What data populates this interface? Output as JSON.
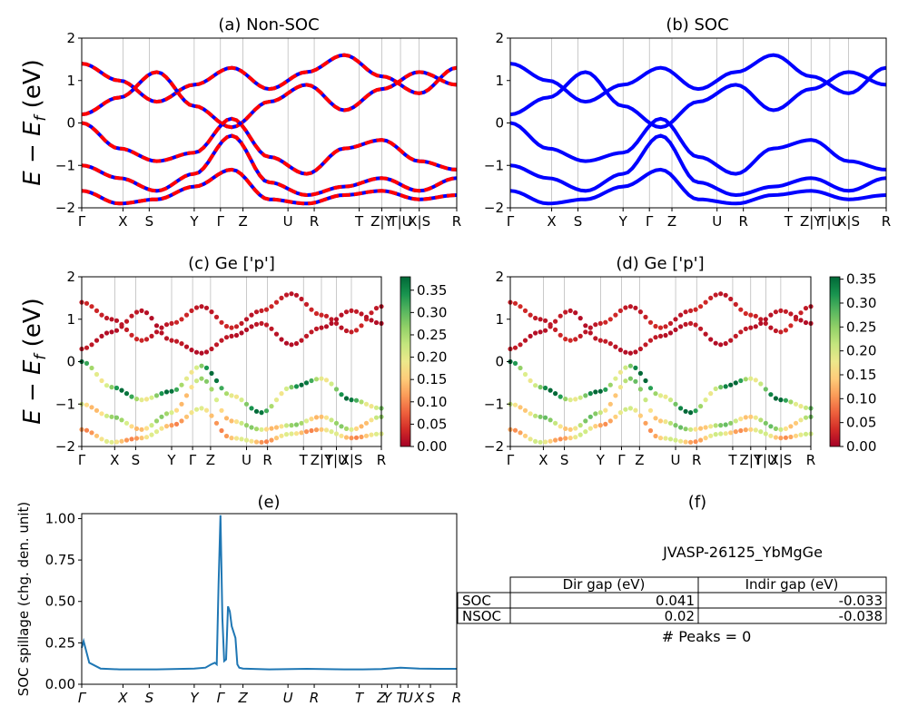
{
  "figure": {
    "ylabel_main": "E − E",
    "ylabel_sub": "f",
    "ylabel_unit": " (eV)"
  },
  "kpoints": {
    "labels": [
      "Γ",
      "X",
      "S",
      "Y",
      "Γ",
      "Z",
      "U",
      "R",
      "T",
      "Z|Y",
      "T|U",
      "X|S",
      "R"
    ],
    "positions": [
      0.0,
      0.11,
      0.18,
      0.3,
      0.37,
      0.43,
      0.55,
      0.62,
      0.74,
      0.8,
      0.85,
      0.9,
      1.0
    ]
  },
  "panels": {
    "a": {
      "title": "(a) Non-SOC",
      "yticks": [
        "2",
        "1",
        "0",
        "−1",
        "−2"
      ]
    },
    "b": {
      "title": "(b) SOC",
      "yticks": [
        "2",
        "1",
        "0",
        "−1",
        "−2"
      ]
    },
    "c": {
      "title": "(c)  Ge ['p']",
      "yticks": [
        "2",
        "1",
        "0",
        "−1",
        "−2"
      ],
      "colorbar": {
        "ticks": [
          "0.35",
          "0.30",
          "0.25",
          "0.20",
          "0.15",
          "0.10",
          "0.05",
          "0.00"
        ],
        "max": 0.38
      }
    },
    "d": {
      "title": "(d) Ge ['p']",
      "yticks": [
        "2",
        "1",
        "0",
        "−1",
        "−2"
      ],
      "colorbar": {
        "ticks": [
          "0.35",
          "0.30",
          "0.25",
          "0.20",
          "0.15",
          "0.10",
          "0.05",
          "0.00"
        ],
        "max": 0.355
      }
    },
    "e": {
      "title": "(e)",
      "ylabel": "SOC spillage (chg. den. unit)",
      "yticks": [
        "1.00",
        "0.75",
        "0.50",
        "0.25",
        "0.00"
      ],
      "xlabels": [
        "Γ",
        "X",
        "S",
        "Y",
        "Γ",
        "Z",
        "U",
        "R",
        "T",
        "Z",
        "Y",
        "T",
        "U",
        "X",
        "S",
        "R"
      ]
    },
    "f": {
      "title": "(f)"
    }
  },
  "chart_data": [
    {
      "type": "line",
      "panel": "a",
      "title": "(a) Non-SOC",
      "ylim": [
        -2,
        2
      ],
      "series": [
        {
          "values": [
            1.4,
            1.0,
            0.5,
            0.9,
            1.3,
            0.8,
            1.2,
            1.6,
            1.1,
            0.7,
            1.3
          ]
        },
        {
          "values": [
            0.2,
            0.6,
            1.2,
            0.4,
            -0.1,
            0.5,
            0.9,
            0.3,
            0.8,
            1.2,
            0.9
          ]
        },
        {
          "values": [
            0.0,
            -0.6,
            -0.9,
            -0.7,
            0.1,
            -0.8,
            -1.2,
            -0.6,
            -0.4,
            -0.9,
            -1.1
          ]
        },
        {
          "values": [
            -1.0,
            -1.3,
            -1.6,
            -1.2,
            -0.3,
            -1.4,
            -1.7,
            -1.5,
            -1.3,
            -1.6,
            -1.3
          ]
        },
        {
          "values": [
            -1.6,
            -1.9,
            -1.8,
            -1.5,
            -1.1,
            -1.8,
            -1.9,
            -1.7,
            -1.6,
            -1.8,
            -1.7
          ]
        }
      ]
    },
    {
      "type": "line",
      "panel": "b",
      "title": "(b) SOC",
      "ylim": [
        -2,
        2
      ],
      "series": [
        {
          "values": [
            1.4,
            1.0,
            0.5,
            0.9,
            1.3,
            0.8,
            1.2,
            1.6,
            1.1,
            0.7,
            1.3
          ]
        },
        {
          "values": [
            0.2,
            0.6,
            1.2,
            0.4,
            -0.1,
            0.5,
            0.9,
            0.3,
            0.8,
            1.2,
            0.9
          ]
        },
        {
          "values": [
            0.0,
            -0.6,
            -0.9,
            -0.7,
            0.1,
            -0.8,
            -1.2,
            -0.6,
            -0.4,
            -0.9,
            -1.1
          ]
        },
        {
          "values": [
            -1.0,
            -1.3,
            -1.6,
            -1.2,
            -0.3,
            -1.4,
            -1.7,
            -1.5,
            -1.3,
            -1.6,
            -1.3
          ]
        },
        {
          "values": [
            -1.6,
            -1.9,
            -1.8,
            -1.5,
            -1.1,
            -1.8,
            -1.9,
            -1.7,
            -1.6,
            -1.8,
            -1.7
          ]
        }
      ]
    },
    {
      "type": "scatter",
      "panel": "c",
      "title": "(c)  Ge ['p']",
      "ylim": [
        -2,
        2
      ],
      "colorbar": "RdYlGn",
      "series": [
        {
          "values": [
            1.4,
            1.0,
            0.5,
            0.9,
            1.3,
            0.8,
            1.2,
            1.6,
            1.1,
            0.7,
            1.3
          ],
          "weight": 0.03
        },
        {
          "values": [
            0.3,
            0.7,
            1.2,
            0.5,
            0.2,
            0.6,
            0.9,
            0.4,
            0.8,
            1.2,
            0.9
          ],
          "weight": 0.02
        },
        {
          "values": [
            0.0,
            -0.6,
            -0.9,
            -0.7,
            -0.1,
            -0.8,
            -1.2,
            -0.6,
            -0.4,
            -0.9,
            -1.1
          ],
          "weight": 0.33
        },
        {
          "values": [
            -1.0,
            -1.3,
            -1.6,
            -1.2,
            -0.4,
            -1.4,
            -1.6,
            -1.5,
            -1.3,
            -1.6,
            -1.3
          ],
          "weight": 0.24
        },
        {
          "values": [
            -1.6,
            -1.9,
            -1.8,
            -1.5,
            -1.1,
            -1.8,
            -1.9,
            -1.7,
            -1.6,
            -1.8,
            -1.7
          ],
          "weight": 0.18
        }
      ]
    },
    {
      "type": "scatter",
      "panel": "d",
      "title": "(d) Ge ['p']",
      "ylim": [
        -2,
        2
      ],
      "colorbar": "RdYlGn",
      "series": [
        {
          "values": [
            1.4,
            1.0,
            0.5,
            0.9,
            1.3,
            0.8,
            1.2,
            1.6,
            1.1,
            0.7,
            1.3
          ],
          "weight": 0.03
        },
        {
          "values": [
            0.3,
            0.7,
            1.2,
            0.5,
            0.2,
            0.6,
            0.9,
            0.4,
            0.8,
            1.2,
            0.9
          ],
          "weight": 0.02
        },
        {
          "values": [
            0.0,
            -0.6,
            -0.9,
            -0.7,
            -0.1,
            -0.8,
            -1.2,
            -0.6,
            -0.4,
            -0.9,
            -1.1
          ],
          "weight": 0.32
        },
        {
          "values": [
            -1.0,
            -1.3,
            -1.6,
            -1.2,
            -0.4,
            -1.4,
            -1.6,
            -1.5,
            -1.3,
            -1.6,
            -1.3
          ],
          "weight": 0.24
        },
        {
          "values": [
            -1.6,
            -1.9,
            -1.8,
            -1.5,
            -1.1,
            -1.8,
            -1.9,
            -1.7,
            -1.6,
            -1.8,
            -1.7
          ],
          "weight": 0.18
        }
      ]
    },
    {
      "type": "line",
      "panel": "e",
      "title": "(e)",
      "ylabel": "SOC spillage (chg. den. unit)",
      "ylim": [
        0,
        1.03
      ],
      "x": [
        0.0,
        0.005,
        0.02,
        0.05,
        0.1,
        0.2,
        0.3,
        0.33,
        0.345,
        0.355,
        0.36,
        0.365,
        0.37,
        0.375,
        0.38,
        0.385,
        0.39,
        0.395,
        0.4,
        0.41,
        0.415,
        0.42,
        0.43,
        0.5,
        0.6,
        0.7,
        0.75,
        0.8,
        0.85,
        0.9,
        0.95,
        1.0
      ],
      "values": [
        0.22,
        0.26,
        0.13,
        0.095,
        0.09,
        0.09,
        0.095,
        0.1,
        0.12,
        0.13,
        0.12,
        0.6,
        1.02,
        0.4,
        0.14,
        0.15,
        0.47,
        0.44,
        0.35,
        0.28,
        0.12,
        0.1,
        0.095,
        0.09,
        0.093,
        0.09,
        0.09,
        0.092,
        0.1,
        0.095,
        0.093,
        0.093
      ]
    },
    {
      "type": "table",
      "panel": "f",
      "title": "(f)",
      "caption": "JVASP-26125_YbMgGe",
      "columns": [
        "",
        "Dir gap (eV)",
        "Indir gap (eV)"
      ],
      "rows": [
        [
          "SOC",
          "0.041",
          "-0.033"
        ],
        [
          "NSOC",
          "0.02",
          "-0.038"
        ]
      ],
      "footer": "# Peaks = 0"
    }
  ]
}
